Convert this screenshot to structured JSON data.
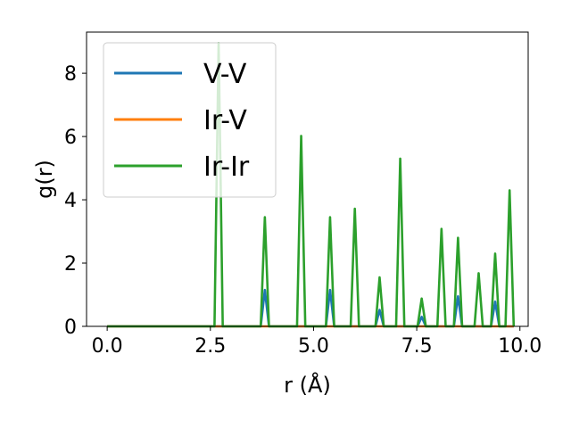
{
  "chart_data": {
    "type": "line",
    "xlabel": "r (Å)",
    "ylabel": "g(r)",
    "xlim": [
      -0.5,
      10.2
    ],
    "ylim": [
      0,
      9.3
    ],
    "xticks": [
      "0.0",
      "2.5",
      "5.0",
      "7.5",
      "10.0"
    ],
    "xtick_values": [
      0,
      2.5,
      5,
      7.5,
      10
    ],
    "yticks": [
      "0",
      "2",
      "4",
      "6",
      "8"
    ],
    "ytick_values": [
      0,
      2,
      4,
      6,
      8
    ],
    "grid": false,
    "legend_position": "top-left",
    "r_range": [
      0.0,
      9.85
    ],
    "peak_halfwidth": 0.1,
    "series": [
      {
        "name": "V-V",
        "color": "#1f77b4",
        "peaks": [
          [
            2.7,
            0.0
          ],
          [
            3.82,
            1.15
          ],
          [
            4.7,
            0.0
          ],
          [
            5.4,
            1.15
          ],
          [
            6.6,
            0.52
          ],
          [
            7.62,
            0.3
          ],
          [
            8.5,
            0.95
          ],
          [
            9.4,
            0.78
          ]
        ]
      },
      {
        "name": "Ir-V",
        "color": "#ff7f0e",
        "peaks": []
      },
      {
        "name": "Ir-Ir",
        "color": "#2ca02c",
        "peaks": [
          [
            2.7,
            8.95
          ],
          [
            3.82,
            3.45
          ],
          [
            4.7,
            6.02
          ],
          [
            5.4,
            3.45
          ],
          [
            6.0,
            3.72
          ],
          [
            6.6,
            1.55
          ],
          [
            7.1,
            5.3
          ],
          [
            7.62,
            0.88
          ],
          [
            8.1,
            3.08
          ],
          [
            8.5,
            2.8
          ],
          [
            9.0,
            1.68
          ],
          [
            9.4,
            2.3
          ],
          [
            9.75,
            4.3
          ]
        ]
      }
    ]
  }
}
